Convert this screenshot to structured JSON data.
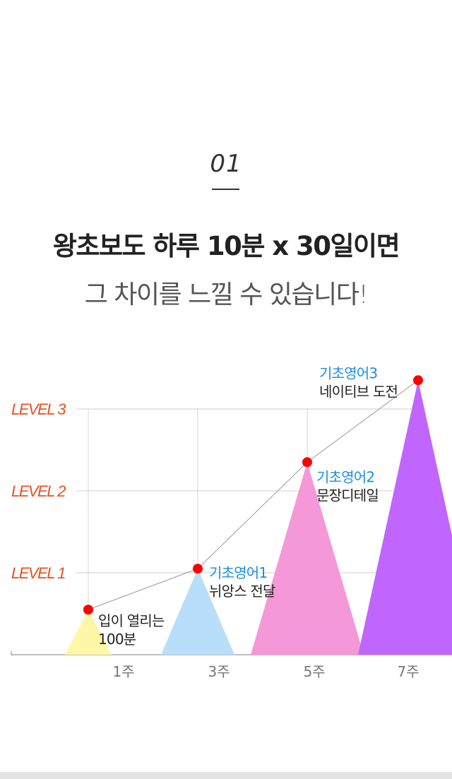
{
  "section": {
    "number": "01",
    "headline": "왕초보도 하루 10분 x 30일이면",
    "subline": "그 차이를 느낄 수 있습니다!"
  },
  "colors": {
    "level_label": "#e8501e",
    "marker": "#ff0000",
    "course_name": "#1a8fe3",
    "course_desc": "#222222",
    "week_label": "#777777"
  },
  "chart_data": {
    "type": "line",
    "title": "",
    "xlabel": "",
    "ylabel": "",
    "x_categories": [
      "1주",
      "3주",
      "5주",
      "7주"
    ],
    "y_levels": [
      "LEVEL 1",
      "LEVEL 2",
      "LEVEL 3"
    ],
    "ylim": [
      0,
      3.35
    ],
    "grid": true,
    "points": [
      {
        "week": "1주",
        "level": 0.55,
        "color": "#fff7a8",
        "lines": [
          "입이 열리는",
          "100분"
        ]
      },
      {
        "week": "3주",
        "level": 1.05,
        "color": "#b8def9",
        "lines": [
          "기초영어1",
          "뉘앙스 전달"
        ]
      },
      {
        "week": "5주",
        "level": 2.35,
        "color": "#f498d8",
        "lines": [
          "기초영어2",
          "문장디테일"
        ]
      },
      {
        "week": "7주",
        "level": 3.35,
        "color": "#c066ff",
        "lines": [
          "기초영어3",
          "네이티브 도전"
        ]
      }
    ]
  }
}
